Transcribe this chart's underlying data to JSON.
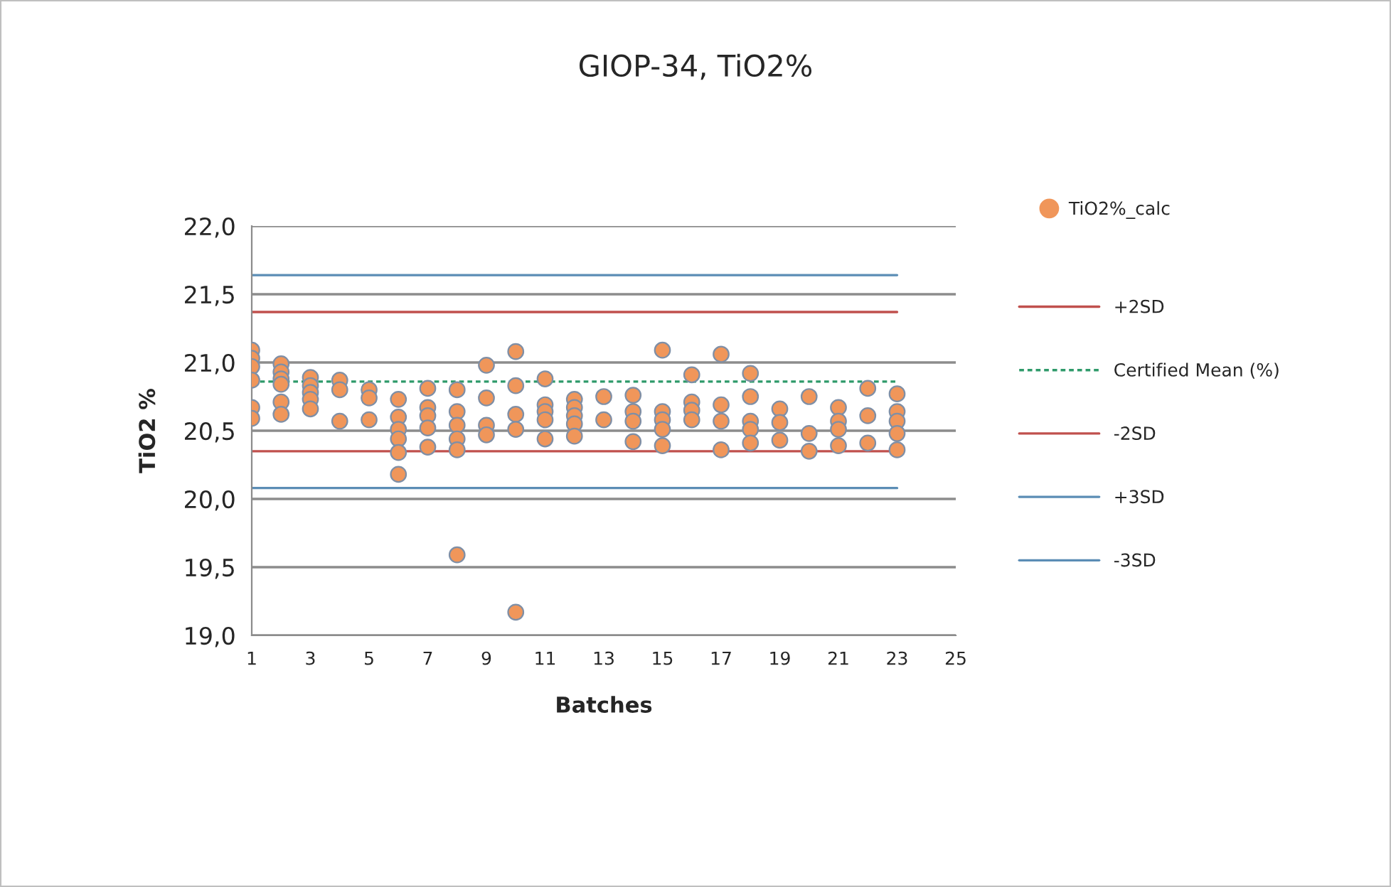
{
  "chart_data": {
    "type": "scatter",
    "title": "GIOP-34, TiO2%",
    "xlabel": "Batches",
    "ylabel": "TiO2 %",
    "xlim": [
      1,
      25
    ],
    "xticks": [
      1,
      3,
      5,
      7,
      9,
      11,
      13,
      15,
      17,
      19,
      21,
      23,
      25
    ],
    "ylim": [
      19.0,
      22.0
    ],
    "yticks": [
      {
        "value": 19.0,
        "label": "19,0"
      },
      {
        "value": 19.5,
        "label": "19,5"
      },
      {
        "value": 20.0,
        "label": "20,0"
      },
      {
        "value": 20.5,
        "label": "20,5"
      },
      {
        "value": 21.0,
        "label": "21,0"
      },
      {
        "value": 21.5,
        "label": "21,5"
      },
      {
        "value": 22.0,
        "label": "22,0"
      }
    ],
    "grid": "y",
    "legend": "right",
    "series": [
      {
        "name": "TiO2%_calc",
        "color": "#f0965a",
        "marker": "circle",
        "x": [
          1,
          1,
          1,
          1,
          1,
          1,
          2,
          2,
          2,
          2,
          2,
          2,
          3,
          3,
          3,
          3,
          3,
          4,
          4,
          4,
          5,
          5,
          5,
          6,
          6,
          6,
          6,
          6,
          6,
          7,
          7,
          7,
          7,
          7,
          8,
          8,
          8,
          8,
          8,
          8,
          9,
          9,
          9,
          9,
          10,
          10,
          10,
          10,
          10,
          11,
          11,
          11,
          11,
          11,
          12,
          12,
          12,
          12,
          12,
          13,
          13,
          14,
          14,
          14,
          14,
          15,
          15,
          15,
          15,
          15,
          16,
          16,
          16,
          16,
          17,
          17,
          17,
          17,
          18,
          18,
          18,
          18,
          18,
          19,
          19,
          19,
          20,
          20,
          20,
          21,
          21,
          21,
          21,
          22,
          22,
          22,
          23,
          23,
          23,
          23,
          23
        ],
        "values": [
          21.09,
          21.03,
          20.97,
          20.87,
          20.67,
          20.59,
          20.99,
          20.93,
          20.88,
          20.84,
          20.71,
          20.62,
          20.89,
          20.83,
          20.78,
          20.73,
          20.66,
          20.87,
          20.8,
          20.57,
          20.8,
          20.74,
          20.58,
          20.73,
          20.6,
          20.51,
          20.44,
          20.34,
          20.18,
          20.81,
          20.67,
          20.61,
          20.52,
          20.38,
          20.8,
          20.64,
          20.54,
          20.44,
          20.36,
          19.59,
          20.98,
          20.74,
          20.54,
          20.47,
          21.08,
          20.83,
          20.62,
          20.51,
          19.17,
          20.88,
          20.69,
          20.64,
          20.58,
          20.44,
          20.73,
          20.67,
          20.61,
          20.55,
          20.46,
          20.75,
          20.58,
          20.76,
          20.64,
          20.57,
          20.42,
          21.09,
          20.64,
          20.58,
          20.51,
          20.39,
          20.91,
          20.71,
          20.65,
          20.58,
          21.06,
          20.69,
          20.57,
          20.36,
          20.92,
          20.75,
          20.57,
          20.51,
          20.41,
          20.66,
          20.56,
          20.43,
          20.75,
          20.48,
          20.35,
          20.67,
          20.57,
          20.51,
          20.39,
          20.81,
          20.61,
          20.41,
          20.77,
          20.64,
          20.57,
          20.48,
          20.36
        ]
      },
      {
        "name": "+2SD",
        "type": "line",
        "color": "#c0504d",
        "line_style": "solid",
        "marker": "none",
        "x": [
          1,
          23
        ],
        "values": [
          21.37,
          21.37
        ]
      },
      {
        "name": "Certified Mean (%)",
        "type": "line",
        "color": "#2e9a6a",
        "line_style": "dotted",
        "marker": "none",
        "x": [
          1,
          23
        ],
        "values": [
          20.86,
          20.86
        ]
      },
      {
        "name": "-2SD",
        "type": "line",
        "color": "#c0504d",
        "line_style": "solid",
        "marker": "none",
        "x": [
          1,
          23
        ],
        "values": [
          20.35,
          20.35
        ]
      },
      {
        "name": "+3SD",
        "type": "line",
        "color": "#5b8db5",
        "line_style": "solid",
        "marker": "none",
        "x": [
          1,
          23
        ],
        "values": [
          21.64,
          21.64
        ]
      },
      {
        "name": "-3SD",
        "type": "line",
        "color": "#5b8db5",
        "line_style": "solid",
        "marker": "none",
        "x": [
          1,
          23
        ],
        "values": [
          20.08,
          20.08
        ]
      }
    ]
  }
}
